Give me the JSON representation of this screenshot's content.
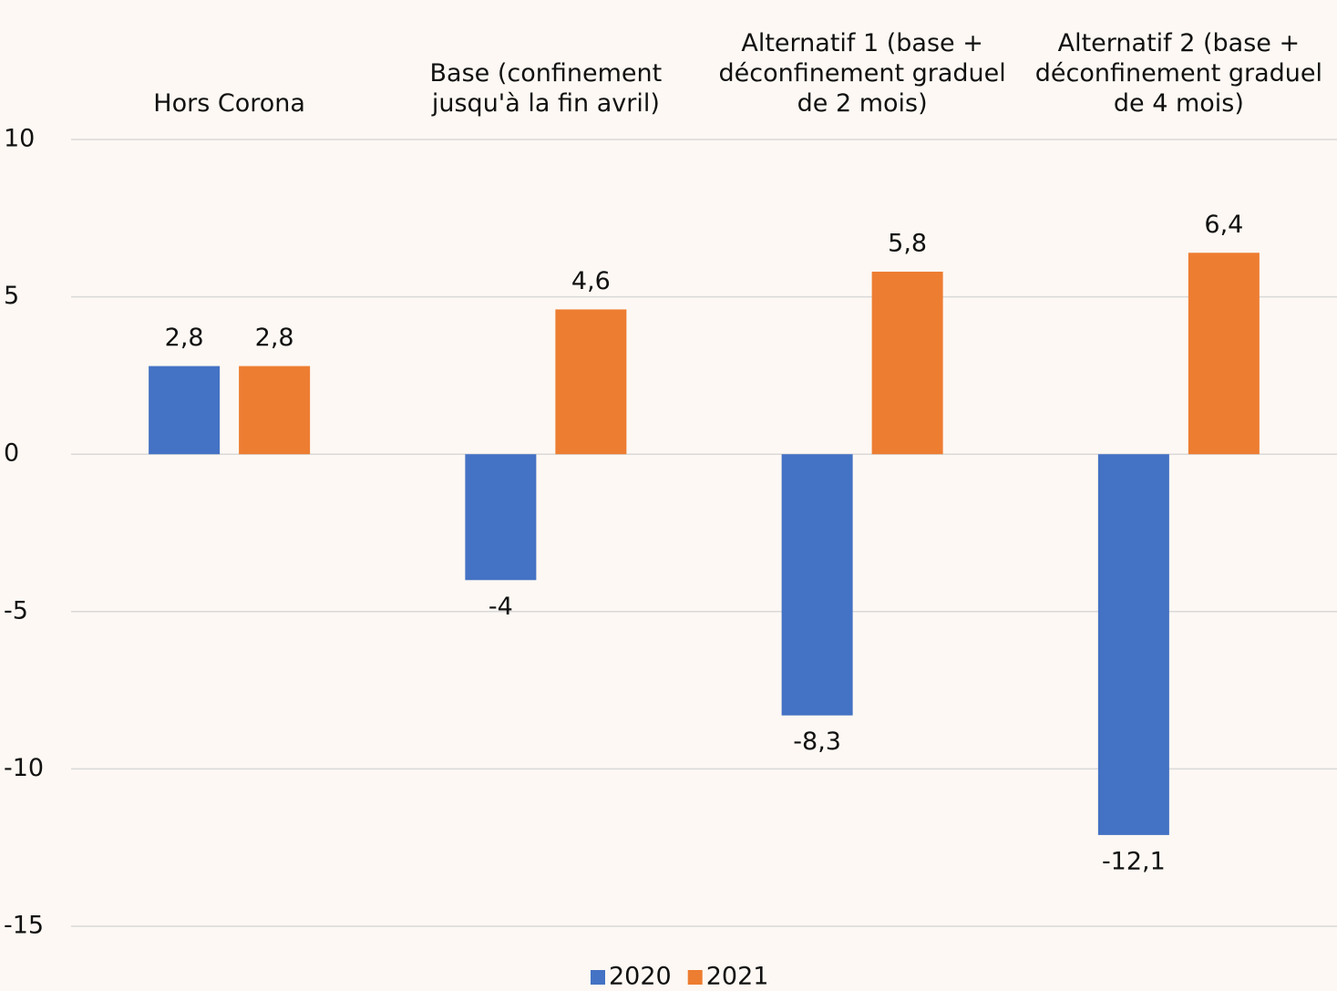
{
  "chart_data": {
    "type": "bar",
    "categories": [
      "Hors Corona",
      "Base (confinement jusqu'à la fin avril)",
      "Alternatif 1 (base + déconfinement graduel de 2 mois)",
      "Alternatif 2 (base + déconfinement graduel de 4 mois)"
    ],
    "series": [
      {
        "name": "2020",
        "color": "#4472c4",
        "values": [
          2.8,
          -4,
          -8.3,
          -12.1
        ],
        "value_labels": [
          "2,8",
          "-4",
          "-8,3",
          "-12,1"
        ]
      },
      {
        "name": "2021",
        "color": "#ed7d31",
        "values": [
          2.8,
          4.6,
          5.8,
          6.4
        ],
        "value_labels": [
          "2,8",
          "4,6",
          "5,8",
          "6,4"
        ]
      }
    ],
    "ylim": [
      -15,
      10
    ],
    "yticks": [
      -15,
      -10,
      -5,
      0,
      5,
      10
    ],
    "grid": true,
    "legend": "bottom"
  }
}
